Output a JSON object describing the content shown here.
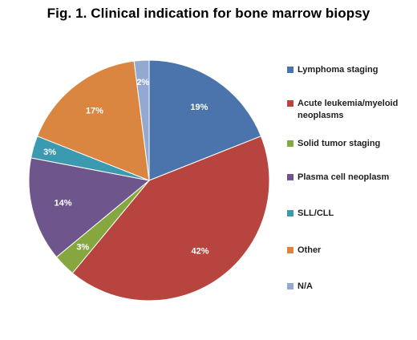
{
  "chart_data": {
    "type": "pie",
    "title": "Fig. 1. Clinical indication for bone marrow biopsy",
    "start_angle_deg": 0,
    "direction": "clockwise",
    "legend_position": "right",
    "slices": [
      {
        "name": "Lymphoma staging",
        "value": 19,
        "label": "19%",
        "color": "#4a74ab"
      },
      {
        "name": "Acute leukemia/myeloid neoplasms",
        "value": 42,
        "label": "42%",
        "color": "#b8443f"
      },
      {
        "name": "Solid tumor staging",
        "value": 3,
        "label": "3%",
        "color": "#86a63f"
      },
      {
        "name": "Plasma cell neoplasm",
        "value": 14,
        "label": "14%",
        "color": "#6e568d"
      },
      {
        "name": "SLL/CLL",
        "value": 3,
        "label": "3%",
        "color": "#3b9aaf"
      },
      {
        "name": "Other",
        "value": 17,
        "label": "17%",
        "color": "#db8640"
      },
      {
        "name": "N/A",
        "value": 2,
        "label": "2%",
        "color": "#93a9d2"
      }
    ]
  }
}
